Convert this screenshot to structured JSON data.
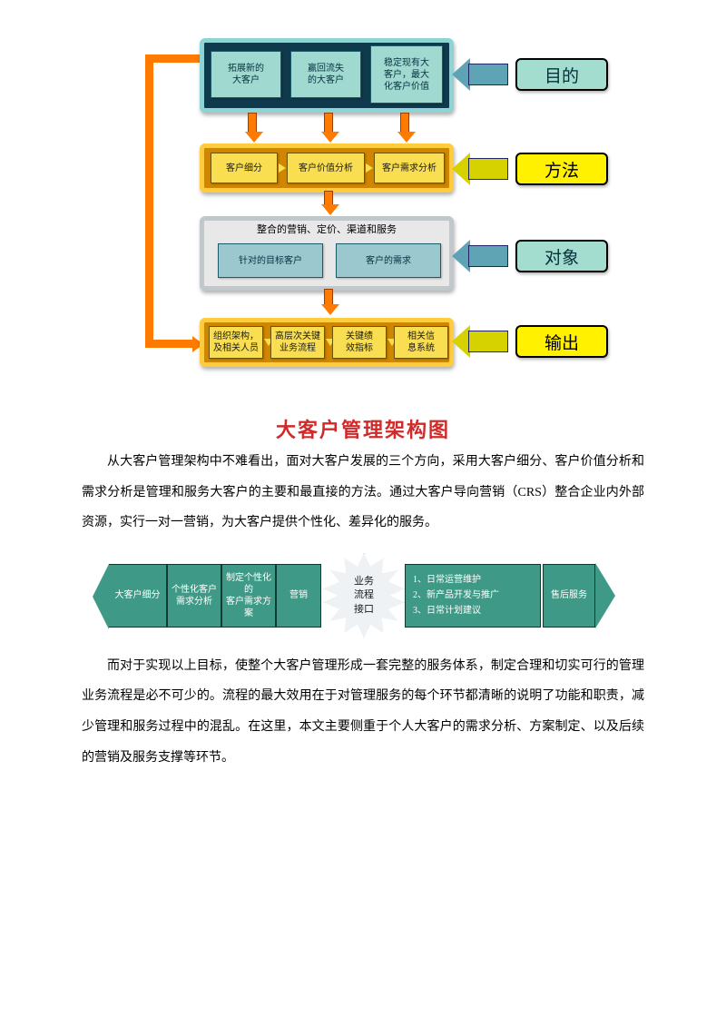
{
  "arch": {
    "title": "大客户管理架构图",
    "layer1": {
      "b1": "拓展新的\n大客户",
      "b2": "赢回流失\n的大客户",
      "b3": "稳定现有大\n客户，最大\n化客户价值"
    },
    "layer2": {
      "b1": "客户细分",
      "b2": "客户价值分析",
      "b3": "客户需求分析"
    },
    "layer3": {
      "header": "整合的营销、定价、渠道和服务",
      "b1": "针对的目标客户",
      "b2": "客户的需求"
    },
    "layer4": {
      "b1": "组织架构，\n及相关人员",
      "b2": "高层次关键\n业务流程",
      "b3": "关键绩\n效指标",
      "b4": "相关信\n息系统"
    },
    "right": {
      "r1": "目的",
      "r2": "方法",
      "r3": "对象",
      "r4": "输出"
    }
  },
  "para1": "从大客户管理架构中不难看出，面对大客户发展的三个方向，采用大客户细分、客户价值分析和需求分析是管理和服务大客户的主要和最直接的方法。通过大客户导向营销（CRS）整合企业内外部资源，实行一对一营销，为大客户提供个性化、差异化的服务。",
  "flow": {
    "f1": "大客户细分",
    "f2": "个性化客户\n需求分析",
    "f3": "制定个性化的\n客户需求方案",
    "f4": "营销",
    "burst": "业务\n流程\n接口",
    "f5a": "1、日常运营维护",
    "f5b": "2、新产品开发与推广",
    "f5c": "3、日常计划建议",
    "f6": "售后服务"
  },
  "para2": "而对于实现以上目标，使整个大客户管理形成一套完整的服务体系，制定合理和切实可行的管理业务流程是必不可少的。流程的最大效用在于对管理服务的每个环节都清晰的说明了功能和职责，减少管理和服务过程中的混乱。在这里，本文主要侧重于个人大客户的需求分析、方案制定、以及后续的营销及服务支撑等环节。"
}
